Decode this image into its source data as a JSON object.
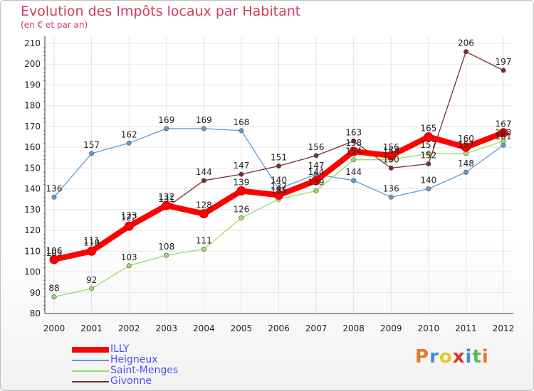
{
  "title": "Evolution des Impôts locaux par Habitant",
  "subtitle": "(en € et par an)",
  "logo": [
    "P",
    "r",
    "o",
    "x",
    "i",
    "t",
    "i"
  ],
  "logo_colors": [
    "#e8762b",
    "#3b8fd8",
    "#e8c62b",
    "#e03030",
    "#3b8fd8",
    "#5cb85c",
    "#e8762b"
  ],
  "chart_data": {
    "type": "line",
    "x": [
      "2000",
      "2001",
      "2002",
      "2003",
      "2004",
      "2005",
      "2006",
      "2007",
      "2008",
      "2009",
      "2010",
      "2011",
      "2012"
    ],
    "ylim": [
      80,
      210
    ],
    "yticks": [
      "80",
      "90",
      "100",
      "110",
      "120",
      "130",
      "140",
      "150",
      "160",
      "170",
      "180",
      "190",
      "200",
      "210"
    ],
    "grid": true,
    "legend_position": "bottom-left",
    "series": [
      {
        "name": "ILLY",
        "color": "#ff0000",
        "values": [
          106,
          110,
          122,
          132,
          128,
          139,
          137,
          144,
          158,
          156,
          165,
          160,
          167
        ],
        "labels": [
          "106",
          "110",
          "122",
          "132",
          "128",
          "139",
          "137",
          "144",
          "158",
          "156",
          "165",
          "160",
          "167"
        ]
      },
      {
        "name": "Heigneux",
        "color": "#5b9bd5",
        "values": [
          136,
          157,
          162,
          169,
          169,
          168,
          140,
          147,
          144,
          136,
          140,
          148,
          161
        ],
        "labels": [
          "136",
          "157",
          "162",
          "169",
          "169",
          "168",
          "140",
          "147",
          "144",
          "136",
          "140",
          "148",
          "161"
        ]
      },
      {
        "name": "Saint-Menges",
        "color": "#99dd66",
        "values": [
          88,
          92,
          103,
          108,
          111,
          126,
          135,
          139,
          154,
          154,
          157,
          157,
          163
        ],
        "labels": [
          "88",
          "92",
          "103",
          "108",
          "111",
          "126",
          "135",
          "139",
          "154",
          "154",
          "157",
          "157",
          "163"
        ]
      },
      {
        "name": "Givonne",
        "color": "#7b2c2c",
        "values": [
          105,
          111,
          123,
          131,
          144,
          147,
          151,
          156,
          163,
          150,
          152,
          206,
          197
        ],
        "labels": [
          "105",
          "111",
          "123",
          "131",
          "144",
          "147",
          "151",
          "156",
          "163",
          "150",
          "152",
          "206",
          "197"
        ]
      }
    ]
  }
}
